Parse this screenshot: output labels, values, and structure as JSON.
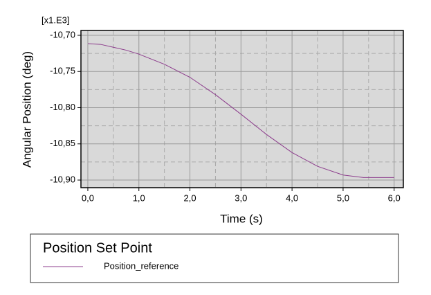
{
  "chart_data": {
    "type": "line",
    "y_label": "Angular Position (deg)",
    "x_label": "Time (s)",
    "y_multiplier": "[x1.E3]",
    "x": [
      0.0,
      0.25,
      0.5,
      0.75,
      1.0,
      1.5,
      2.0,
      2.5,
      3.0,
      3.5,
      4.0,
      4.5,
      5.0,
      5.4,
      6.0
    ],
    "series": [
      {
        "name": "Position_reference",
        "color": "#8c3c8c",
        "values": [
          -10.7115,
          -10.7125,
          -10.7165,
          -10.7205,
          -10.726,
          -10.74,
          -10.758,
          -10.782,
          -10.809,
          -10.837,
          -10.862,
          -10.881,
          -10.893,
          -10.8965,
          -10.8965
        ]
      }
    ],
    "legend_title": "Position Set Point",
    "xlim": [
      -0.135,
      6.18
    ],
    "ylim": [
      -10.9105,
      -10.6933
    ],
    "xticks": [
      {
        "value": 0,
        "label": "0,0"
      },
      {
        "value": 1,
        "label": "1,0"
      },
      {
        "value": 2,
        "label": "2,0"
      },
      {
        "value": 3,
        "label": "3,0"
      },
      {
        "value": 4,
        "label": "4,0"
      },
      {
        "value": 5,
        "label": "5,0"
      },
      {
        "value": 6,
        "label": "6,0"
      }
    ],
    "yticks": [
      {
        "value": -10.7,
        "label": "-10,70"
      },
      {
        "value": -10.75,
        "label": "-10,75"
      },
      {
        "value": -10.8,
        "label": "-10,80"
      },
      {
        "value": -10.85,
        "label": "-10,85"
      },
      {
        "value": -10.9,
        "label": "-10,90"
      }
    ],
    "minor_xticks": [
      0.5,
      1.5,
      2.5,
      3.5,
      4.5,
      5.5
    ],
    "minor_yticks": [
      -10.725,
      -10.775,
      -10.825,
      -10.875
    ],
    "grid": true
  }
}
